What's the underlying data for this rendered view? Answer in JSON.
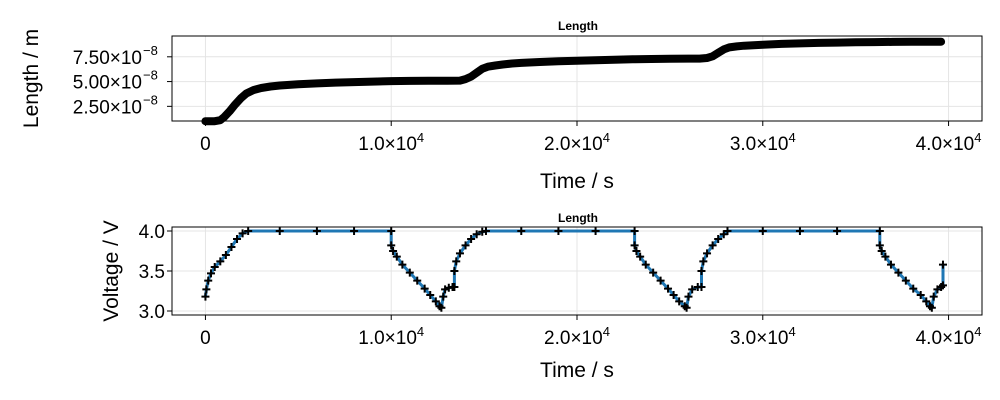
{
  "chart_data": [
    {
      "type": "line",
      "title": "Length",
      "xlabel": "Time / s",
      "ylabel": "Length / m",
      "xlim": [
        -1800,
        41800
      ],
      "ylim": [
        1.02e-08,
        9.6e-08
      ],
      "grid": true,
      "x_ticks": [
        {
          "value": 0,
          "label": "0",
          "exp": ""
        },
        {
          "value": 10000,
          "label": "1.0×10",
          "exp": "4"
        },
        {
          "value": 20000,
          "label": "2.0×10",
          "exp": "4"
        },
        {
          "value": 30000,
          "label": "3.0×10",
          "exp": "4"
        },
        {
          "value": 40000,
          "label": "4.0×10",
          "exp": "4"
        }
      ],
      "y_ticks": [
        {
          "value": 2.5e-08,
          "label": "2.50×10",
          "exp": "−8"
        },
        {
          "value": 5e-08,
          "label": "5.00×10",
          "exp": "−8"
        },
        {
          "value": 7.5e-08,
          "label": "7.50×10",
          "exp": "−8"
        }
      ],
      "series": [
        {
          "color": "#000000",
          "x": [
            0,
            200,
            500,
            800,
            1000,
            1300,
            1600,
            1900,
            2200,
            2600,
            3000,
            3500,
            4000,
            5000,
            6000,
            7000,
            8000,
            9000,
            10000,
            11000,
            12000,
            13000,
            13700,
            14000,
            14300,
            14600,
            14900,
            15200,
            15600,
            16000,
            16500,
            17000,
            18000,
            19000,
            20000,
            21000,
            22000,
            23000,
            24000,
            25000,
            26000,
            26600,
            27000,
            27300,
            27600,
            27900,
            28200,
            28600,
            29000,
            30000,
            31000,
            32000,
            33000,
            34000,
            35000,
            36000,
            37000,
            38000,
            39000,
            39600
          ],
          "y": [
            1e-08,
            1e-08,
            1e-08,
            1.1e-08,
            1.4e-08,
            2e-08,
            2.7e-08,
            3.3e-08,
            3.8e-08,
            4.15e-08,
            4.35e-08,
            4.5e-08,
            4.6e-08,
            4.72e-08,
            4.82e-08,
            4.9e-08,
            4.95e-08,
            5e-08,
            5.05e-08,
            5.07e-08,
            5.08e-08,
            5.08e-08,
            5.1e-08,
            5.25e-08,
            5.5e-08,
            5.9e-08,
            6.3e-08,
            6.5e-08,
            6.62e-08,
            6.72e-08,
            6.82e-08,
            6.88e-08,
            6.98e-08,
            7.05e-08,
            7.1e-08,
            7.15e-08,
            7.2e-08,
            7.25e-08,
            7.28e-08,
            7.3e-08,
            7.32e-08,
            7.32e-08,
            7.38e-08,
            7.55e-08,
            7.9e-08,
            8.25e-08,
            8.45e-08,
            8.55e-08,
            8.62e-08,
            8.72e-08,
            8.8e-08,
            8.85e-08,
            8.9e-08,
            8.93e-08,
            8.96e-08,
            8.98e-08,
            9e-08,
            9.01e-08,
            9.02e-08,
            9.02e-08
          ]
        }
      ]
    },
    {
      "type": "line",
      "title": "Length",
      "xlabel": "Time / s",
      "ylabel": "Voltage / V",
      "xlim": [
        -1800,
        41800
      ],
      "ylim": [
        2.95,
        4.05
      ],
      "grid": true,
      "x_ticks": [
        {
          "value": 0,
          "label": "0",
          "exp": ""
        },
        {
          "value": 10000,
          "label": "1.0×10",
          "exp": "4"
        },
        {
          "value": 20000,
          "label": "2.0×10",
          "exp": "4"
        },
        {
          "value": 30000,
          "label": "3.0×10",
          "exp": "4"
        },
        {
          "value": 40000,
          "label": "4.0×10",
          "exp": "4"
        }
      ],
      "y_ticks": [
        {
          "value": 3.0,
          "label": "3.0",
          "exp": ""
        },
        {
          "value": 3.5,
          "label": "3.5",
          "exp": ""
        },
        {
          "value": 4.0,
          "label": "4.0",
          "exp": ""
        }
      ],
      "series": [
        {
          "color": "#1f77b4",
          "x": [
            0,
            50,
            150,
            300,
            500,
            800,
            1100,
            1400,
            1700,
            2000,
            2300,
            4000,
            6000,
            8000,
            10000,
            10000,
            10100,
            10300,
            10600,
            11000,
            11400,
            11800,
            12100,
            12400,
            12600,
            12700,
            12800,
            12900,
            13100,
            13300,
            13400,
            13400,
            13500,
            13700,
            14000,
            14300,
            14600,
            14900,
            15100,
            17000,
            19000,
            21000,
            23100,
            23100,
            23200,
            23400,
            23700,
            24100,
            24500,
            24900,
            25200,
            25500,
            25800,
            25900,
            26000,
            26200,
            26500,
            26700,
            26700,
            26800,
            27000,
            27300,
            27600,
            27900,
            28100,
            30000,
            32000,
            34000,
            36300,
            36300,
            36400,
            36600,
            36900,
            37300,
            37700,
            38100,
            38500,
            38800,
            39000,
            39100,
            39200,
            39400,
            39600,
            39700,
            39700
          ],
          "y": [
            3.18,
            3.27,
            3.38,
            3.47,
            3.55,
            3.62,
            3.7,
            3.8,
            3.9,
            3.97,
            4.0,
            4.0,
            4.0,
            4.0,
            4.0,
            3.82,
            3.75,
            3.68,
            3.58,
            3.48,
            3.38,
            3.28,
            3.2,
            3.12,
            3.06,
            3.04,
            3.18,
            3.27,
            3.29,
            3.3,
            3.3,
            3.5,
            3.62,
            3.72,
            3.82,
            3.9,
            3.96,
            3.99,
            4.0,
            4.0,
            4.0,
            4.0,
            4.0,
            3.82,
            3.75,
            3.68,
            3.58,
            3.48,
            3.38,
            3.28,
            3.2,
            3.12,
            3.06,
            3.04,
            3.18,
            3.27,
            3.3,
            3.3,
            3.5,
            3.62,
            3.72,
            3.82,
            3.9,
            3.96,
            4.0,
            4.0,
            4.0,
            4.0,
            4.0,
            3.82,
            3.75,
            3.68,
            3.58,
            3.48,
            3.38,
            3.28,
            3.2,
            3.12,
            3.06,
            3.04,
            3.18,
            3.27,
            3.3,
            3.32,
            3.58
          ]
        }
      ]
    }
  ]
}
